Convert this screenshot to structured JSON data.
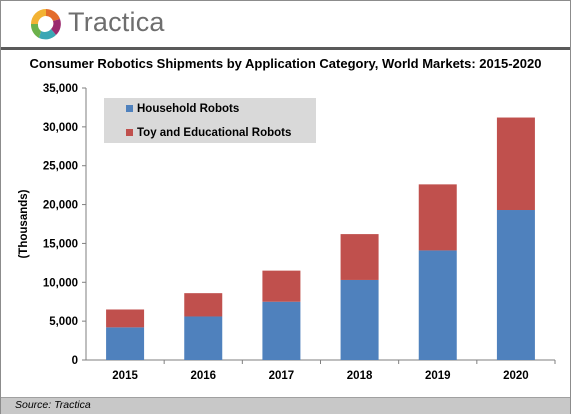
{
  "brand": {
    "name": "Tractica"
  },
  "chart_data": {
    "type": "bar",
    "stacked": true,
    "title": "Consumer Robotics Shipments by Application Category, World Markets: 2015-2020",
    "xlabel": "",
    "ylabel": "(Thousands)",
    "ylim": [
      0,
      35000
    ],
    "yticks": [
      "0",
      "5,000",
      "10,000",
      "15,000",
      "20,000",
      "25,000",
      "30,000",
      "35,000"
    ],
    "categories": [
      "2015",
      "2016",
      "2017",
      "2018",
      "2019",
      "2020"
    ],
    "series": [
      {
        "name": "Household Robots",
        "color": "#4f81bd",
        "values": [
          4200,
          5600,
          7500,
          10300,
          14100,
          19300
        ]
      },
      {
        "name": "Toy and Educational Robots",
        "color": "#c0504d",
        "values": [
          2300,
          3000,
          4000,
          5900,
          8500,
          11900
        ]
      }
    ],
    "legend_position": "top-left",
    "grid": false
  },
  "footer": {
    "source": "Source: Tractica"
  }
}
